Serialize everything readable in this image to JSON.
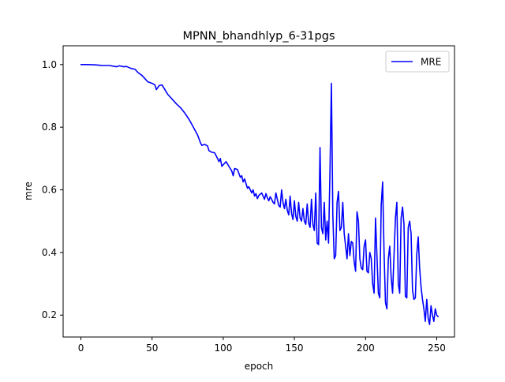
{
  "chart_data": {
    "type": "line",
    "title": "MPNN_bhandhlyp_6-31pgs",
    "xlabel": "epoch",
    "ylabel": "mre",
    "xlim": [
      -12.5,
      262.5
    ],
    "ylim": [
      0.13,
      1.06
    ],
    "xticks": [
      0,
      50,
      100,
      150,
      200,
      250
    ],
    "xtick_labels": [
      "0",
      "50",
      "100",
      "150",
      "200",
      "250"
    ],
    "yticks": [
      0.2,
      0.4,
      0.6,
      0.8,
      1.0
    ],
    "ytick_labels": [
      "0.2",
      "0.4",
      "0.6",
      "0.8",
      "1.0"
    ],
    "grid": false,
    "legend": {
      "position": "top-right",
      "entries": [
        "MRE"
      ]
    },
    "series": [
      {
        "name": "MRE",
        "color": "#0000ff",
        "points": [
          [
            0,
            1.0
          ],
          [
            5,
            1.0
          ],
          [
            10,
            0.999
          ],
          [
            15,
            0.997
          ],
          [
            20,
            0.997
          ],
          [
            25,
            0.993
          ],
          [
            27,
            0.996
          ],
          [
            30,
            0.993
          ],
          [
            32,
            0.994
          ],
          [
            35,
            0.988
          ],
          [
            38,
            0.985
          ],
          [
            40,
            0.975
          ],
          [
            43,
            0.965
          ],
          [
            45,
            0.955
          ],
          [
            47,
            0.945
          ],
          [
            50,
            0.94
          ],
          [
            52,
            0.935
          ],
          [
            53,
            0.92
          ],
          [
            55,
            0.933
          ],
          [
            57,
            0.935
          ],
          [
            59,
            0.92
          ],
          [
            61,
            0.905
          ],
          [
            64,
            0.89
          ],
          [
            67,
            0.875
          ],
          [
            70,
            0.862
          ],
          [
            73,
            0.845
          ],
          [
            76,
            0.825
          ],
          [
            79,
            0.8
          ],
          [
            82,
            0.775
          ],
          [
            84,
            0.75
          ],
          [
            85,
            0.742
          ],
          [
            87,
            0.745
          ],
          [
            89,
            0.74
          ],
          [
            90,
            0.725
          ],
          [
            92,
            0.72
          ],
          [
            94,
            0.718
          ],
          [
            96,
            0.7
          ],
          [
            97,
            0.69
          ],
          [
            98,
            0.7
          ],
          [
            99,
            0.675
          ],
          [
            100,
            0.68
          ],
          [
            102,
            0.69
          ],
          [
            104,
            0.675
          ],
          [
            106,
            0.66
          ],
          [
            107,
            0.645
          ],
          [
            108,
            0.668
          ],
          [
            110,
            0.665
          ],
          [
            112,
            0.64
          ],
          [
            113,
            0.645
          ],
          [
            114,
            0.625
          ],
          [
            115,
            0.635
          ],
          [
            117,
            0.605
          ],
          [
            118,
            0.61
          ],
          [
            120,
            0.59
          ],
          [
            121,
            0.6
          ],
          [
            122,
            0.58
          ],
          [
            123,
            0.588
          ],
          [
            124,
            0.572
          ],
          [
            125,
            0.582
          ],
          [
            127,
            0.59
          ],
          [
            128,
            0.58
          ],
          [
            129,
            0.57
          ],
          [
            130,
            0.588
          ],
          [
            131,
            0.575
          ],
          [
            132,
            0.565
          ],
          [
            133,
            0.578
          ],
          [
            134,
            0.57
          ],
          [
            135,
            0.56
          ],
          [
            136,
            0.555
          ],
          [
            137,
            0.59
          ],
          [
            138,
            0.57
          ],
          [
            139,
            0.55
          ],
          [
            140,
            0.545
          ],
          [
            141,
            0.6
          ],
          [
            142,
            0.56
          ],
          [
            143,
            0.54
          ],
          [
            144,
            0.57
          ],
          [
            145,
            0.535
          ],
          [
            146,
            0.52
          ],
          [
            147,
            0.58
          ],
          [
            148,
            0.525
          ],
          [
            149,
            0.505
          ],
          [
            150,
            0.565
          ],
          [
            151,
            0.515
          ],
          [
            152,
            0.5
          ],
          [
            153,
            0.56
          ],
          [
            154,
            0.51
          ],
          [
            155,
            0.5
          ],
          [
            156,
            0.54
          ],
          [
            157,
            0.5
          ],
          [
            158,
            0.49
          ],
          [
            159,
            0.555
          ],
          [
            160,
            0.495
          ],
          [
            161,
            0.48
          ],
          [
            162,
            0.57
          ],
          [
            163,
            0.49
          ],
          [
            164,
            0.47
          ],
          [
            165,
            0.59
          ],
          [
            166,
            0.43
          ],
          [
            167,
            0.425
          ],
          [
            168,
            0.735
          ],
          [
            169,
            0.48
          ],
          [
            170,
            0.46
          ],
          [
            171,
            0.56
          ],
          [
            172,
            0.44
          ],
          [
            173,
            0.5
          ],
          [
            174,
            0.43
          ],
          [
            175,
            0.66
          ],
          [
            176,
            0.94
          ],
          [
            177,
            0.52
          ],
          [
            178,
            0.38
          ],
          [
            179,
            0.39
          ],
          [
            180,
            0.56
          ],
          [
            181,
            0.595
          ],
          [
            182,
            0.47
          ],
          [
            183,
            0.48
          ],
          [
            184,
            0.56
          ],
          [
            185,
            0.46
          ],
          [
            186,
            0.42
          ],
          [
            187,
            0.38
          ],
          [
            188,
            0.46
          ],
          [
            189,
            0.39
          ],
          [
            190,
            0.435
          ],
          [
            191,
            0.43
          ],
          [
            192,
            0.37
          ],
          [
            193,
            0.34
          ],
          [
            194,
            0.53
          ],
          [
            195,
            0.5
          ],
          [
            196,
            0.38
          ],
          [
            197,
            0.35
          ],
          [
            198,
            0.345
          ],
          [
            199,
            0.42
          ],
          [
            200,
            0.44
          ],
          [
            201,
            0.34
          ],
          [
            202,
            0.335
          ],
          [
            203,
            0.4
          ],
          [
            204,
            0.38
          ],
          [
            205,
            0.3
          ],
          [
            206,
            0.27
          ],
          [
            207,
            0.51
          ],
          [
            208,
            0.39
          ],
          [
            209,
            0.27
          ],
          [
            210,
            0.255
          ],
          [
            211,
            0.55
          ],
          [
            212,
            0.625
          ],
          [
            213,
            0.4
          ],
          [
            214,
            0.24
          ],
          [
            215,
            0.22
          ],
          [
            216,
            0.38
          ],
          [
            217,
            0.42
          ],
          [
            218,
            0.32
          ],
          [
            219,
            0.27
          ],
          [
            220,
            0.39
          ],
          [
            221,
            0.51
          ],
          [
            222,
            0.56
          ],
          [
            223,
            0.3
          ],
          [
            224,
            0.27
          ],
          [
            225,
            0.51
          ],
          [
            226,
            0.545
          ],
          [
            227,
            0.49
          ],
          [
            228,
            0.26
          ],
          [
            229,
            0.255
          ],
          [
            230,
            0.48
          ],
          [
            231,
            0.5
          ],
          [
            232,
            0.46
          ],
          [
            233,
            0.28
          ],
          [
            234,
            0.25
          ],
          [
            235,
            0.255
          ],
          [
            236,
            0.395
          ],
          [
            237,
            0.45
          ],
          [
            238,
            0.35
          ],
          [
            239,
            0.29
          ],
          [
            240,
            0.25
          ],
          [
            241,
            0.22
          ],
          [
            242,
            0.18
          ],
          [
            243,
            0.25
          ],
          [
            244,
            0.19
          ],
          [
            245,
            0.17
          ],
          [
            246,
            0.23
          ],
          [
            247,
            0.2
          ],
          [
            248,
            0.18
          ],
          [
            249,
            0.22
          ],
          [
            250,
            0.2
          ],
          [
            251,
            0.195
          ]
        ]
      }
    ]
  }
}
